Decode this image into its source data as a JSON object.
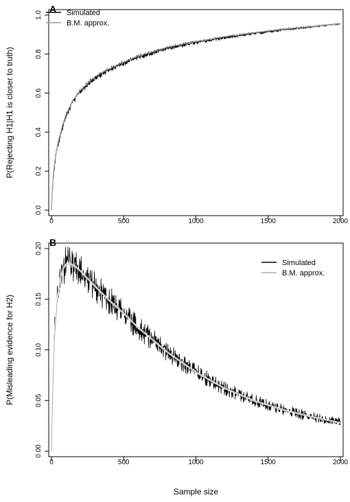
{
  "chart_data": [
    {
      "type": "line",
      "panel_label": "A",
      "title": "",
      "xlabel": "",
      "ylabel": "P(Rejecting H1|H1 is closer to truth)",
      "xlim": [
        0,
        2000
      ],
      "ylim": [
        0,
        1
      ],
      "xticks": [
        0,
        500,
        1000,
        1500,
        2000
      ],
      "yticks": [
        0.0,
        0.2,
        0.4,
        0.6,
        0.8,
        1.0
      ],
      "ytick_labels": [
        "0.0",
        "0.2",
        "0.4",
        "0.6",
        "0.8",
        "1.0"
      ],
      "grid": false,
      "legend": {
        "position": "top-left",
        "entries": [
          "Simulated",
          "B.M. approx."
        ]
      },
      "series": [
        {
          "name": "Simulated",
          "color": "#000000",
          "noisy": true,
          "x": [
            0,
            5,
            10,
            20,
            30,
            50,
            75,
            100,
            150,
            200,
            300,
            400,
            500,
            600,
            800,
            1000,
            1200,
            1400,
            1600,
            1800,
            2000
          ],
          "values": [
            0.0,
            0.08,
            0.15,
            0.22,
            0.28,
            0.35,
            0.42,
            0.48,
            0.56,
            0.61,
            0.68,
            0.72,
            0.755,
            0.785,
            0.83,
            0.86,
            0.885,
            0.905,
            0.925,
            0.94,
            0.955
          ]
        },
        {
          "name": "B.M. approx.",
          "color": "#999999",
          "noisy": false,
          "x": [
            0,
            5,
            10,
            20,
            30,
            50,
            75,
            100,
            150,
            200,
            300,
            400,
            500,
            600,
            800,
            1000,
            1200,
            1400,
            1600,
            1800,
            2000
          ],
          "values": [
            0.0,
            0.09,
            0.16,
            0.23,
            0.29,
            0.36,
            0.43,
            0.49,
            0.565,
            0.615,
            0.685,
            0.725,
            0.76,
            0.79,
            0.835,
            0.865,
            0.89,
            0.91,
            0.928,
            0.942,
            0.956
          ]
        }
      ]
    },
    {
      "type": "line",
      "panel_label": "B",
      "title": "",
      "xlabel": "Sample size",
      "ylabel": "P(Misleading evidence for H2)",
      "xlim": [
        0,
        2000
      ],
      "ylim": [
        0,
        0.2
      ],
      "xticks": [
        0,
        500,
        1000,
        1500,
        2000
      ],
      "yticks": [
        0.0,
        0.05,
        0.1,
        0.15,
        0.2
      ],
      "ytick_labels": [
        "0.00",
        "0.05",
        "0.10",
        "0.15",
        "0.20"
      ],
      "grid": false,
      "legend": {
        "position": "top-right",
        "entries": [
          "Simulated",
          "B.M. approx."
        ]
      },
      "series": [
        {
          "name": "Simulated",
          "color": "#000000",
          "noisy": true,
          "x": [
            0,
            10,
            20,
            40,
            60,
            80,
            100,
            130,
            160,
            200,
            300,
            400,
            500,
            600,
            800,
            1000,
            1200,
            1400,
            1600,
            1800,
            2000
          ],
          "values": [
            0.0,
            0.07,
            0.11,
            0.15,
            0.17,
            0.18,
            0.184,
            0.185,
            0.183,
            0.178,
            0.163,
            0.149,
            0.136,
            0.122,
            0.098,
            0.078,
            0.062,
            0.05,
            0.041,
            0.034,
            0.029
          ]
        },
        {
          "name": "B.M. approx.",
          "color": "#aaaaaa",
          "noisy": false,
          "x": [
            0,
            10,
            20,
            40,
            60,
            80,
            100,
            130,
            160,
            200,
            300,
            400,
            500,
            600,
            800,
            1000,
            1200,
            1400,
            1600,
            1800,
            2000
          ],
          "values": [
            0.0,
            0.07,
            0.11,
            0.15,
            0.17,
            0.18,
            0.184,
            0.185,
            0.183,
            0.178,
            0.163,
            0.149,
            0.136,
            0.122,
            0.098,
            0.078,
            0.062,
            0.05,
            0.041,
            0.034,
            0.028
          ]
        }
      ]
    }
  ]
}
